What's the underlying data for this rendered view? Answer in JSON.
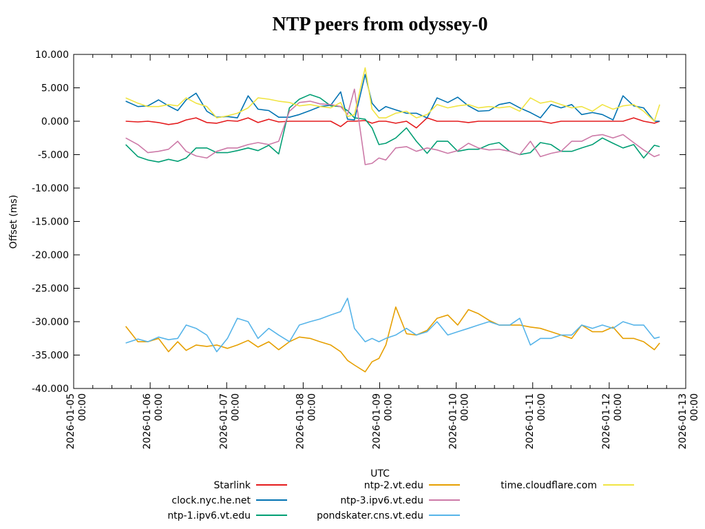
{
  "chart_data": {
    "type": "line",
    "title": "NTP peers from odyssey-0",
    "xlabel": "UTC",
    "ylabel": "Offset (ms)",
    "ylim": [
      -40,
      10
    ],
    "yticks": [
      10,
      5,
      0,
      -5,
      -10,
      -15,
      -20,
      -25,
      -30,
      -35,
      -40
    ],
    "ytick_labels": [
      "10.000",
      "5.000",
      "0.000",
      "-5.000",
      "-10.000",
      "-15.000",
      "-20.000",
      "-25.000",
      "-30.000",
      "-35.000",
      "-40.000"
    ],
    "x_unit": "days since 2026-01-05 00:00 UTC",
    "xlim": [
      0,
      8
    ],
    "xticks": [
      0,
      1,
      2,
      3,
      4,
      5,
      6,
      7,
      8
    ],
    "xtick_labels": [
      [
        "2026-01-05",
        "00:00"
      ],
      [
        "2026-01-06",
        "00:00"
      ],
      [
        "2026-01-07",
        "00:00"
      ],
      [
        "2026-01-08",
        "00:00"
      ],
      [
        "2026-01-09",
        "00:00"
      ],
      [
        "2026-01-10",
        "00:00"
      ],
      [
        "2026-01-11",
        "00:00"
      ],
      [
        "2026-01-12",
        "00:00"
      ],
      [
        "2026-01-13",
        "00:00"
      ]
    ],
    "minor_xtick_interval_days": 0.25,
    "grid": false,
    "legend_position": "bottom",
    "x": [
      0.68,
      0.84,
      0.97,
      1.11,
      1.24,
      1.36,
      1.47,
      1.6,
      1.74,
      1.87,
      2.01,
      2.14,
      2.28,
      2.41,
      2.55,
      2.68,
      2.82,
      2.95,
      3.09,
      3.22,
      3.36,
      3.49,
      3.58,
      3.67,
      3.81,
      3.9,
      3.99,
      4.08,
      4.21,
      4.35,
      4.48,
      4.62,
      4.75,
      4.89,
      5.02,
      5.16,
      5.29,
      5.43,
      5.56,
      5.7,
      5.83,
      5.97,
      6.1,
      6.24,
      6.37,
      6.51,
      6.64,
      6.78,
      6.91,
      7.05,
      7.18,
      7.32,
      7.45,
      7.59,
      7.66
    ],
    "series": [
      {
        "name": "Starlink",
        "color": "#e41a1c",
        "values": [
          0.0,
          -0.1,
          0.0,
          -0.2,
          -0.5,
          -0.3,
          0.2,
          0.5,
          -0.2,
          -0.3,
          0.1,
          0.0,
          0.5,
          -0.2,
          0.3,
          -0.1,
          0.0,
          0.0,
          0.0,
          0.0,
          0.0,
          -0.8,
          0.0,
          0.0,
          0.1,
          -0.3,
          0.0,
          0.0,
          -0.3,
          0.0,
          -1.0,
          0.5,
          0.0,
          0.0,
          0.0,
          -0.2,
          0.0,
          0.0,
          0.0,
          0.0,
          0.0,
          0.0,
          0.0,
          -0.3,
          0.0,
          0.0,
          0.0,
          0.0,
          0.0,
          0.0,
          0.0,
          0.5,
          0.0,
          -0.3,
          0.0
        ]
      },
      {
        "name": "clock.nyc.he.net",
        "color": "#0072b2",
        "values": [
          3.0,
          2.2,
          2.3,
          3.2,
          2.3,
          1.6,
          3.2,
          4.2,
          1.5,
          0.6,
          0.7,
          0.5,
          3.8,
          1.8,
          1.6,
          0.6,
          0.6,
          1.0,
          1.6,
          2.2,
          2.4,
          4.4,
          0.3,
          0.2,
          7.0,
          2.7,
          1.5,
          2.2,
          1.7,
          1.2,
          1.2,
          0.5,
          3.5,
          2.8,
          3.6,
          2.3,
          1.5,
          1.6,
          2.5,
          2.8,
          2.0,
          1.3,
          0.5,
          2.5,
          2.0,
          2.5,
          1.0,
          1.3,
          1.0,
          0.2,
          3.8,
          2.3,
          2.0,
          0.0,
          0.0
        ]
      },
      {
        "name": "ntp-1.ipv6.vt.edu",
        "color": "#009e73",
        "values": [
          -3.5,
          -5.3,
          -5.8,
          -6.1,
          -5.7,
          -6.0,
          -5.5,
          -4.0,
          -4.0,
          -4.7,
          -4.7,
          -4.4,
          -4.0,
          -4.4,
          -3.6,
          -4.9,
          2.0,
          3.3,
          4.0,
          3.5,
          2.3,
          2.2,
          1.6,
          0.5,
          0.3,
          -1.0,
          -3.5,
          -3.3,
          -2.5,
          -1.0,
          -3.0,
          -4.8,
          -3.0,
          -3.0,
          -4.5,
          -4.2,
          -4.2,
          -3.5,
          -3.2,
          -4.5,
          -5.0,
          -4.7,
          -3.2,
          -3.5,
          -4.5,
          -4.5,
          -4.0,
          -3.5,
          -2.5,
          -3.3,
          -4.0,
          -3.5,
          -5.5,
          -3.6,
          -3.8
        ]
      },
      {
        "name": "ntp-2.vt.edu",
        "color": "#e69f00",
        "values": [
          -30.7,
          -33.0,
          -33.0,
          -32.5,
          -34.5,
          -33.0,
          -34.3,
          -33.5,
          -33.7,
          -33.5,
          -34.0,
          -33.5,
          -32.8,
          -33.8,
          -33.0,
          -34.2,
          -33.0,
          -32.3,
          -32.5,
          -33.0,
          -33.5,
          -34.5,
          -35.8,
          -36.5,
          -37.5,
          -36.0,
          -35.5,
          -33.5,
          -27.8,
          -31.8,
          -32.0,
          -31.3,
          -29.5,
          -29.0,
          -30.5,
          -28.2,
          -28.8,
          -29.8,
          -30.5,
          -30.5,
          -30.5,
          -30.8,
          -31.0,
          -31.5,
          -32.0,
          -32.5,
          -30.5,
          -31.5,
          -31.5,
          -30.8,
          -32.5,
          -32.5,
          -33.0,
          -34.2,
          -33.2
        ]
      },
      {
        "name": "ntp-3.ipv6.vt.edu",
        "color": "#cc79a7",
        "values": [
          -2.5,
          -3.5,
          -4.7,
          -4.5,
          -4.2,
          -3.0,
          -4.5,
          -5.2,
          -5.5,
          -4.5,
          -4.0,
          -4.0,
          -3.5,
          -3.2,
          -3.5,
          -3.0,
          1.5,
          2.8,
          3.0,
          2.6,
          2.5,
          2.2,
          1.0,
          4.8,
          -6.5,
          -6.3,
          -5.5,
          -5.8,
          -4.0,
          -3.8,
          -4.5,
          -4.0,
          -4.3,
          -4.8,
          -4.4,
          -3.3,
          -4.0,
          -4.3,
          -4.2,
          -4.5,
          -5.0,
          -3.0,
          -5.3,
          -4.8,
          -4.5,
          -3.0,
          -3.0,
          -2.2,
          -2.0,
          -2.5,
          -2.0,
          -3.2,
          -4.3,
          -5.3,
          -5.0
        ]
      },
      {
        "name": "pondskater.cns.vt.edu",
        "color": "#56b4e9",
        "values": [
          -33.2,
          -32.6,
          -33.0,
          -32.3,
          -32.7,
          -32.5,
          -30.5,
          -31.0,
          -32.0,
          -34.5,
          -32.5,
          -29.5,
          -30.0,
          -32.5,
          -31.0,
          -32.0,
          -33.0,
          -30.5,
          -30.0,
          -29.6,
          -29.0,
          -28.5,
          -26.5,
          -31.0,
          -33.0,
          -32.5,
          -33.0,
          -32.5,
          -32.0,
          -31.0,
          -32.0,
          -31.5,
          -30.0,
          -32.0,
          -31.5,
          -31.0,
          -30.5,
          -30.0,
          -30.5,
          -30.5,
          -29.5,
          -33.5,
          -32.5,
          -32.5,
          -32.0,
          -32.0,
          -30.5,
          -31.0,
          -30.5,
          -31.0,
          -30.0,
          -30.5,
          -30.5,
          -32.5,
          -32.3
        ]
      },
      {
        "name": "time.cloudflare.com",
        "color": "#f0e442",
        "values": [
          3.5,
          2.7,
          2.2,
          2.2,
          2.5,
          2.3,
          3.5,
          2.7,
          2.2,
          0.5,
          0.8,
          1.2,
          2.0,
          3.5,
          3.3,
          3.0,
          2.8,
          2.3,
          2.5,
          2.2,
          2.0,
          2.8,
          0.7,
          1.0,
          8.0,
          1.8,
          0.5,
          0.5,
          1.2,
          1.5,
          0.5,
          1.0,
          2.5,
          2.0,
          2.3,
          2.5,
          2.0,
          2.2,
          2.0,
          2.2,
          1.5,
          3.5,
          2.7,
          3.0,
          2.5,
          2.0,
          2.2,
          1.5,
          2.5,
          1.8,
          2.3,
          2.5,
          1.5,
          0.0,
          2.5
        ]
      }
    ]
  }
}
